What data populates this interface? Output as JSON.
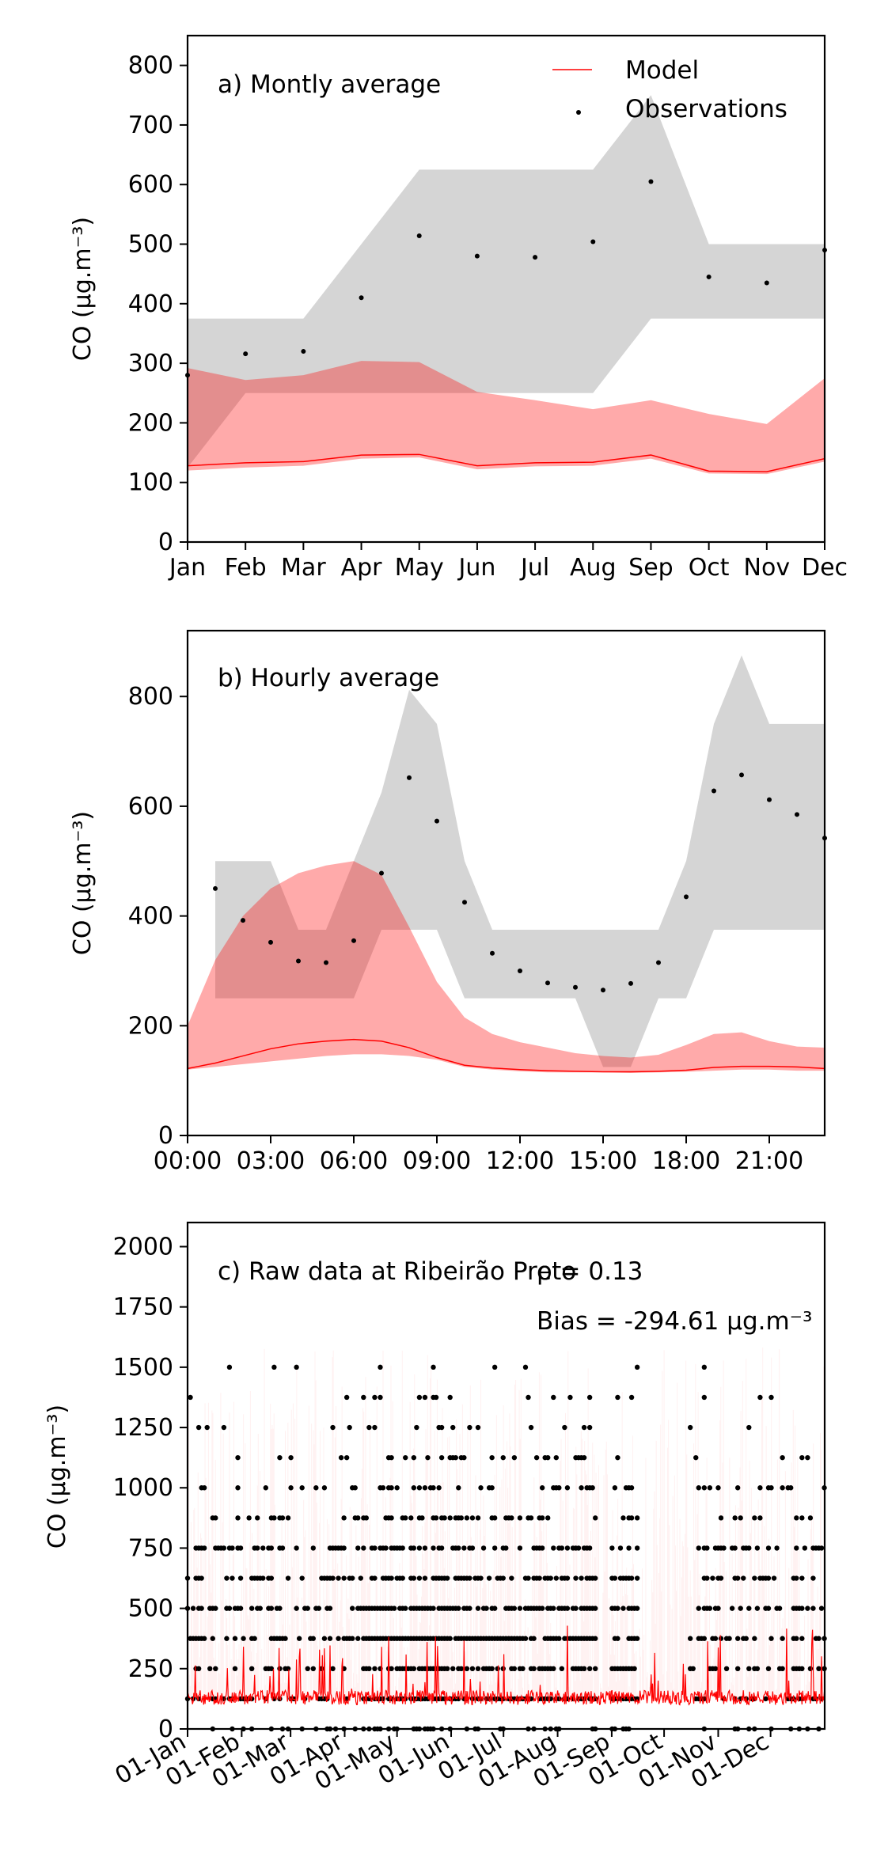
{
  "colors": {
    "model": "#ff0000",
    "model_band": "#ff000055",
    "obs": "#000000",
    "obs_band": "#d5d5d5"
  },
  "chart_data": [
    {
      "id": "monthly",
      "type": "line",
      "title": "a) Montly average",
      "ylabel": "CO ($\\mu g.m^{-3}$)",
      "ylabel_text": "CO (μg.m⁻³)",
      "ylim": [
        0,
        850
      ],
      "yticks": [
        0,
        100,
        200,
        300,
        400,
        500,
        600,
        700,
        800
      ],
      "categories": [
        "Jan",
        "Feb",
        "Mar",
        "Apr",
        "May",
        "Jun",
        "Jul",
        "Aug",
        "Sep",
        "Oct",
        "Nov",
        "Dec"
      ],
      "legend": {
        "placement": "top-right",
        "entries": [
          "Model",
          "Observations"
        ]
      },
      "series": [
        {
          "name": "Model",
          "kind": "line",
          "values": [
            128,
            133,
            135,
            146,
            147,
            128,
            133,
            134,
            146,
            119,
            118,
            140
          ]
        },
        {
          "name": "Model range",
          "kind": "band",
          "lower": [
            120,
            125,
            128,
            140,
            142,
            122,
            127,
            128,
            140,
            115,
            114,
            135
          ],
          "upper": [
            292,
            272,
            280,
            304,
            302,
            252,
            238,
            223,
            238,
            215,
            198,
            275
          ]
        },
        {
          "name": "Observations",
          "kind": "points",
          "values": [
            280,
            316,
            320,
            410,
            514,
            480,
            478,
            504,
            605,
            445,
            435,
            490
          ]
        },
        {
          "name": "Observations range",
          "kind": "band",
          "lower": [
            125,
            250,
            250,
            250,
            250,
            250,
            250,
            250,
            375,
            375,
            375,
            375
          ],
          "upper": [
            375,
            375,
            375,
            500,
            625,
            625,
            625,
            625,
            750,
            500,
            500,
            500
          ]
        }
      ]
    },
    {
      "id": "hourly",
      "type": "line",
      "title": "b) Hourly average",
      "ylabel_text": "CO (μg.m⁻³)",
      "ylim": [
        0,
        920
      ],
      "xlim": [
        0,
        23
      ],
      "yticks": [
        0,
        200,
        400,
        600,
        800
      ],
      "xticks": [
        0,
        3,
        6,
        9,
        12,
        15,
        18,
        21
      ],
      "xtick_labels": [
        "00:00",
        "03:00",
        "06:00",
        "09:00",
        "12:00",
        "15:00",
        "18:00",
        "21:00"
      ],
      "series": [
        {
          "name": "Model",
          "kind": "line",
          "x": [
            0,
            1,
            2,
            3,
            4,
            5,
            6,
            7,
            8,
            9,
            10,
            11,
            12,
            13,
            14,
            15,
            16,
            17,
            18,
            19,
            20,
            21,
            22,
            23
          ],
          "values": [
            122,
            132,
            145,
            158,
            167,
            172,
            175,
            172,
            160,
            142,
            128,
            123,
            120,
            118,
            117,
            116,
            116,
            117,
            119,
            124,
            126,
            126,
            125,
            122
          ]
        },
        {
          "name": "Model range",
          "kind": "band",
          "x": [
            0,
            1,
            2,
            3,
            4,
            5,
            6,
            7,
            8,
            9,
            10,
            11,
            12,
            13,
            14,
            15,
            16,
            17,
            18,
            19,
            20,
            21,
            22,
            23
          ],
          "lower": [
            120,
            125,
            130,
            135,
            140,
            145,
            148,
            148,
            145,
            138,
            125,
            120,
            117,
            115,
            115,
            115,
            114,
            115,
            116,
            118,
            120,
            120,
            118,
            118
          ],
          "upper": [
            200,
            320,
            400,
            450,
            478,
            492,
            500,
            475,
            380,
            280,
            215,
            185,
            170,
            160,
            150,
            145,
            142,
            147,
            165,
            185,
            188,
            172,
            162,
            160
          ]
        },
        {
          "name": "Observations",
          "kind": "points",
          "x": [
            1,
            2,
            3,
            4,
            5,
            6,
            7,
            8,
            9,
            10,
            11,
            12,
            13,
            14,
            15,
            16,
            17,
            18,
            19,
            20,
            21,
            22,
            23
          ],
          "values": [
            450,
            392,
            352,
            318,
            315,
            355,
            478,
            652,
            573,
            425,
            332,
            300,
            278,
            270,
            265,
            277,
            315,
            435,
            628,
            657,
            612,
            585,
            542
          ]
        },
        {
          "name": "Observations range",
          "kind": "band",
          "x": [
            1,
            2,
            3,
            4,
            5,
            6,
            7,
            8,
            9,
            10,
            11,
            12,
            13,
            14,
            15,
            16,
            17,
            18,
            19,
            20,
            21,
            22,
            23
          ],
          "lower": [
            250,
            250,
            250,
            250,
            250,
            250,
            375,
            375,
            375,
            250,
            250,
            250,
            250,
            250,
            125,
            125,
            250,
            250,
            375,
            375,
            375,
            375,
            375
          ],
          "upper": [
            500,
            500,
            500,
            375,
            375,
            500,
            625,
            812,
            750,
            500,
            375,
            375,
            375,
            375,
            375,
            375,
            375,
            500,
            750,
            875,
            750,
            750,
            750
          ]
        }
      ]
    },
    {
      "id": "raw",
      "type": "scatter",
      "title": "c) Raw data at Ribeirão Preto",
      "r_label": "ρ = 0.13",
      "bias_label": "Bias = -294.61 μg.m⁻³",
      "ylabel_text": "CO (μg.m⁻³)",
      "ylim": [
        0,
        2100
      ],
      "xlim": [
        0,
        365
      ],
      "yticks": [
        0,
        250,
        500,
        750,
        1000,
        1250,
        1500,
        1750,
        2000
      ],
      "xticks": [
        0,
        31,
        59,
        90,
        120,
        151,
        181,
        212,
        243,
        273,
        304,
        334
      ],
      "xtick_labels": [
        "01-Jan",
        "01-Feb",
        "01-Mar",
        "01-Apr",
        "01-May",
        "01-Jun",
        "01-Jul",
        "01-Aug",
        "01-Sep",
        "01-Oct",
        "01-Nov",
        "01-Dec"
      ],
      "obs_levels": [
        0,
        125,
        250,
        375,
        500,
        625,
        750,
        875,
        1000,
        1125,
        1250,
        1375,
        1500
      ],
      "obs_gaps": [
        [
          235,
          243
        ],
        [
          259,
          287
        ]
      ],
      "obs_level_density": [
        0.35,
        0.8,
        0.7,
        0.85,
        0.85,
        0.7,
        0.55,
        0.4,
        0.3,
        0.2,
        0.12,
        0.07,
        0.05
      ],
      "model_baseline": 130,
      "model_max": 1750
    }
  ]
}
